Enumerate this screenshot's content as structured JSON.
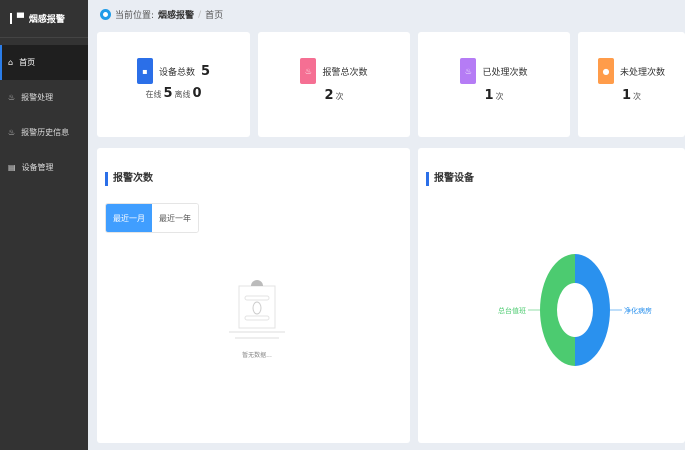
{
  "app": {
    "title": "烟感报警"
  },
  "sidebar": {
    "items": [
      {
        "label": "首页",
        "icon": "home-icon",
        "active": true
      },
      {
        "label": "报警处理",
        "icon": "alarm-icon"
      },
      {
        "label": "报警历史信息",
        "icon": "alarm-history-icon"
      },
      {
        "label": "设备管理",
        "icon": "device-icon"
      }
    ]
  },
  "breadcrumb": {
    "prefix": "当前位置:",
    "section": "烟感报警",
    "sep": "/",
    "page": "首页"
  },
  "cards": {
    "devices": {
      "label": "设备总数",
      "value": "5",
      "online_label": "在线",
      "online": "5",
      "offline_label": "离线",
      "offline": "0",
      "color": "#2b6fe8"
    },
    "total": {
      "label": "报警总次数",
      "value": "2",
      "unit": "次",
      "color": "#f56f93"
    },
    "handled": {
      "label": "已处理次数",
      "value": "1",
      "unit": "次",
      "color": "#b57cf5"
    },
    "unhandled": {
      "label": "未处理次数",
      "value": "1",
      "unit": "次",
      "color": "#ff9c4a"
    }
  },
  "alarm_panel": {
    "title": "报警次数",
    "tabs": [
      "最近一月",
      "最近一年"
    ],
    "active_tab": 0,
    "empty_text": "暂无数据..."
  },
  "device_panel": {
    "title": "报警设备"
  },
  "chart_data": {
    "type": "pie",
    "donut": true,
    "categories": [
      "总台值班",
      "净化病房"
    ],
    "values": [
      1,
      1
    ],
    "colors": [
      "#4ccb70",
      "#2a91ee"
    ]
  }
}
